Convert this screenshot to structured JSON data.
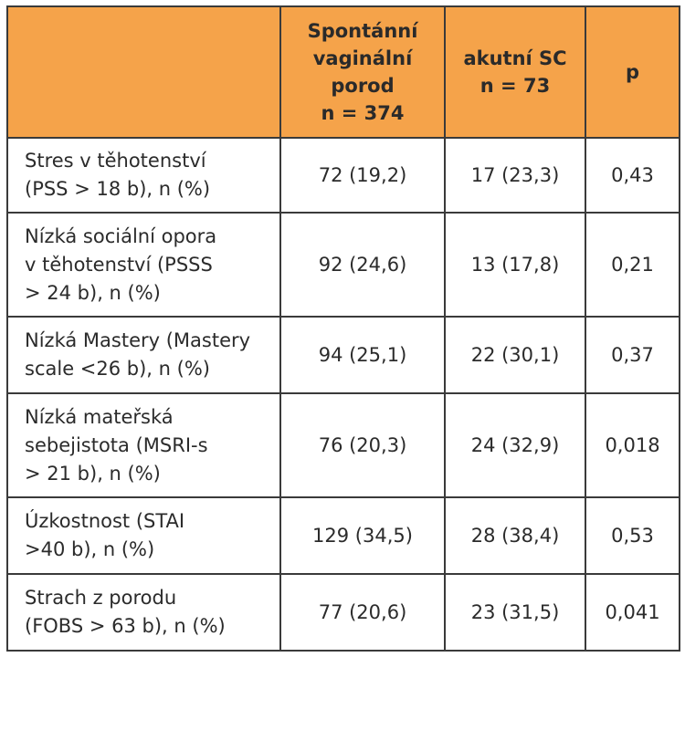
{
  "table": {
    "header": {
      "corner": "",
      "col1_lines": [
        "Spontánní",
        "vaginální",
        "porod",
        "n = 374"
      ],
      "col2_lines": [
        "akutní SC",
        "n = 73"
      ],
      "col3_lines": [
        "p"
      ]
    },
    "rows": [
      {
        "label_lines": [
          "Stres v těhotenství",
          "(PSS > 18 b), n (%)"
        ],
        "vaginal": "72 (19,2)",
        "sc": "17 (23,3)",
        "p": "0,43"
      },
      {
        "label_lines": [
          "Nízká sociální opora",
          "v těhotenství (PSSS",
          "> 24 b), n (%)"
        ],
        "vaginal": "92 (24,6)",
        "sc": "13 (17,8)",
        "p": "0,21"
      },
      {
        "label_lines": [
          "Nízká Mastery (Mastery",
          "scale <26 b), n (%)"
        ],
        "vaginal": "94 (25,1)",
        "sc": "22 (30,1)",
        "p": "0,37"
      },
      {
        "label_lines": [
          "Nízká mateřská",
          "sebejistota (MSRI-s",
          "> 21 b), n (%)"
        ],
        "vaginal": "76 (20,3)",
        "sc": "24 (32,9)",
        "p": "0,018"
      },
      {
        "label_lines": [
          "Úzkostnost (STAI",
          ">40 b), n (%)"
        ],
        "vaginal": "129 (34,5)",
        "sc": "28 (38,4)",
        "p": "0,53"
      },
      {
        "label_lines": [
          "Strach z porodu",
          "(FOBS > 63 b), n (%)"
        ],
        "vaginal": "77 (20,6)",
        "sc": "23 (31,5)",
        "p": "0,041"
      }
    ]
  },
  "colors": {
    "header_bg": "#f5a34a",
    "border": "#3a3a3a",
    "text": "#2b2b2b"
  }
}
